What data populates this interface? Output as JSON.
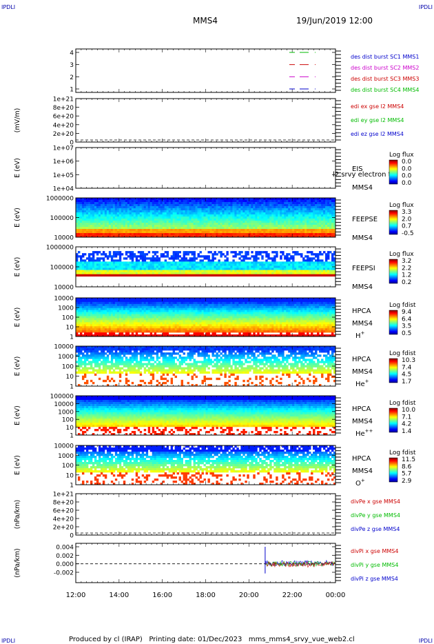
{
  "header": {
    "corner_tl": "IPDLI",
    "corner_tr": "IPDLI",
    "title": "MMS4",
    "datetime": "19/Jun/2019 12:00"
  },
  "footer": {
    "corner_bl": "IPDLI",
    "corner_br": "IPDLI",
    "text": "Produced by cl (IRAP)   Printing date: 01/Dec/2023   mms_mms4_srvy_vue_web2.cl"
  },
  "colors": {
    "mms1": "#0000cc",
    "mms2": "#cc00cc",
    "mms3": "#cc0000",
    "mms4": "#00bb00",
    "x": "#cc0000",
    "y": "#00bb00",
    "z": "#0000cc"
  },
  "chart_data": {
    "type": "spectrogram",
    "time_axis": {
      "tick_labels": [
        "12:00",
        "14:00",
        "16:00",
        "18:00",
        "20:00",
        "22:00",
        "00:00"
      ],
      "range_hours": [
        12,
        24
      ]
    },
    "panels": [
      {
        "id": "burst",
        "type": "line",
        "yticks": [
          "4",
          "3",
          "2",
          "1"
        ],
        "legend": [
          {
            "label": "des dist burst SC1 MMS1",
            "color": "#0000cc"
          },
          {
            "label": "des dist burst SC2 MMS2",
            "color": "#cc00cc"
          },
          {
            "label": "des dist burst SC3 MMS3",
            "color": "#cc0000"
          },
          {
            "label": "des dist burst SC4 MMS4",
            "color": "#00bb00"
          }
        ]
      },
      {
        "id": "edi",
        "type": "line",
        "ylabel": "(mV/m)",
        "yticks": [
          "1e+21",
          "8e+20",
          "6e+20",
          "4e+20",
          "2e+20",
          "0"
        ],
        "legend": [
          {
            "label": "edi ex gse l2 MMS4",
            "color": "#cc0000"
          },
          {
            "label": "edi ey gse l2 MMS4",
            "color": "#00bb00"
          },
          {
            "label": "edi ez gse l2 MMS4",
            "color": "#0000cc"
          }
        ]
      },
      {
        "id": "eis",
        "type": "heatmap",
        "ylabel": "E (eV)",
        "yticks": [
          "1e+07",
          "1e+06",
          "1e+05",
          "1e+04"
        ],
        "labels": [
          "EIS",
          "MMS4"
        ],
        "overlay": "l2 srvy electron to",
        "colorbar": {
          "title": "Log flux",
          "ticks": [
            "0.0",
            "0.0",
            "0.0",
            "0.0"
          ]
        }
      },
      {
        "id": "feepse",
        "type": "heatmap",
        "ylabel": "E (eV)",
        "yticks": [
          "1000000",
          "100000",
          "10000"
        ],
        "labels": [
          "FEEPSE",
          "MMS4"
        ],
        "colorbar": {
          "title": "Log flux",
          "ticks": [
            "3.3",
            "2.0",
            "0.7",
            "-0.5"
          ]
        }
      },
      {
        "id": "feepsi",
        "type": "heatmap",
        "ylabel": "E (eV)",
        "yticks": [
          "1000000",
          "100000",
          "10000"
        ],
        "labels": [
          "FEEPSI",
          "MMS4"
        ],
        "colorbar": {
          "title": "Log flux",
          "ticks": [
            "3.2",
            "2.2",
            "1.2",
            "0.2"
          ]
        }
      },
      {
        "id": "hpca_h",
        "type": "heatmap",
        "ylabel": "E (eV)",
        "yticks": [
          "10000",
          "1000",
          "100",
          "10",
          "1"
        ],
        "labels": [
          "HPCA",
          "MMS4"
        ],
        "species": "H",
        "species_sup": "+",
        "colorbar": {
          "title": "Log fdist",
          "ticks": [
            "9.4",
            "6.4",
            "3.5",
            "0.5"
          ]
        }
      },
      {
        "id": "hpca_he",
        "type": "heatmap",
        "ylabel": "E (eV)",
        "yticks": [
          "10000",
          "1000",
          "100",
          "10",
          "1"
        ],
        "labels": [
          "HPCA",
          "MMS4"
        ],
        "species": "He",
        "species_sup": "+",
        "colorbar": {
          "title": "Log fdist",
          "ticks": [
            "10.3",
            "7.4",
            "4.5",
            "1.7"
          ]
        }
      },
      {
        "id": "hpca_he2",
        "type": "heatmap",
        "ylabel": "E (eV)",
        "yticks": [
          "100000",
          "10000",
          "1000",
          "100",
          "10",
          "1"
        ],
        "labels": [
          "HPCA",
          "MMS4"
        ],
        "species": "He",
        "species_sup": "++",
        "colorbar": {
          "title": "Log fdist",
          "ticks": [
            "10.0",
            "7.1",
            "4.2",
            "1.4"
          ]
        }
      },
      {
        "id": "hpca_o",
        "type": "heatmap",
        "ylabel": "E (eV)",
        "yticks": [
          "10000",
          "1000",
          "100",
          "10",
          "1"
        ],
        "labels": [
          "HPCA",
          "MMS4"
        ],
        "species": "O",
        "species_sup": "+",
        "colorbar": {
          "title": "Log fdist",
          "ticks": [
            "11.5",
            "8.6",
            "5.7",
            "2.9"
          ]
        }
      },
      {
        "id": "divpe",
        "type": "line",
        "ylabel": "(nPa/km)",
        "yticks": [
          "1e+21",
          "8e+20",
          "6e+20",
          "4e+20",
          "2e+20",
          "0"
        ],
        "legend": [
          {
            "label": "divPe x gse MMS4",
            "color": "#cc0000"
          },
          {
            "label": "divPe y gse MMS4",
            "color": "#00bb00"
          },
          {
            "label": "divPe z gse MMS4",
            "color": "#0000cc"
          }
        ]
      },
      {
        "id": "divpi",
        "type": "line",
        "ylabel": "(nPa/km)",
        "yticks": [
          "0.004",
          "0.002",
          "0.000",
          "-0.002"
        ],
        "data_start_hour": 20.75,
        "legend": [
          {
            "label": "divPi x gse MMS4",
            "color": "#cc0000"
          },
          {
            "label": "divPi y gse MMS4",
            "color": "#00bb00"
          },
          {
            "label": "divPi z gse MMS4",
            "color": "#0000cc"
          }
        ]
      }
    ]
  }
}
